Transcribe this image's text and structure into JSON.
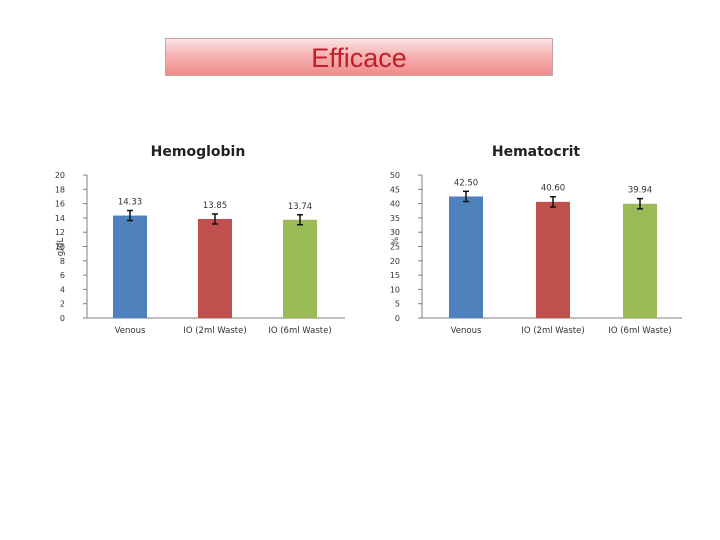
{
  "page": {
    "title": "Efficace"
  },
  "chart_data": [
    {
      "type": "bar",
      "title": "Hemoglobin",
      "xlabel": "",
      "ylabel": "g/dL",
      "ylim": [
        0,
        20
      ],
      "yticks": [
        0,
        2,
        4,
        6,
        8,
        10,
        12,
        14,
        16,
        18,
        20
      ],
      "categories": [
        "Venous",
        "IO (2ml Waste)",
        "IO (6ml Waste)"
      ],
      "values": [
        14.33,
        13.85,
        13.74
      ],
      "value_labels": [
        "14.33",
        "13.85",
        "13.74"
      ],
      "error": [
        0.7,
        0.7,
        0.7
      ],
      "colors": [
        "#4f81bd",
        "#c0504d",
        "#9bbb59"
      ],
      "grid": false,
      "legend": "none"
    },
    {
      "type": "bar",
      "title": "Hematocrit",
      "xlabel": "",
      "ylabel": "%",
      "ylim": [
        0,
        50
      ],
      "yticks": [
        0,
        5,
        10,
        15,
        20,
        25,
        30,
        35,
        40,
        45,
        50
      ],
      "categories": [
        "Venous",
        "IO (2ml Waste)",
        "IO (6ml Waste)"
      ],
      "values": [
        42.5,
        40.6,
        39.94
      ],
      "value_labels": [
        "42.50",
        "40.60",
        "39.94"
      ],
      "error": [
        1.8,
        1.8,
        1.8
      ],
      "colors": [
        "#4f81bd",
        "#c0504d",
        "#9bbb59"
      ],
      "grid": false,
      "legend": "none"
    }
  ]
}
